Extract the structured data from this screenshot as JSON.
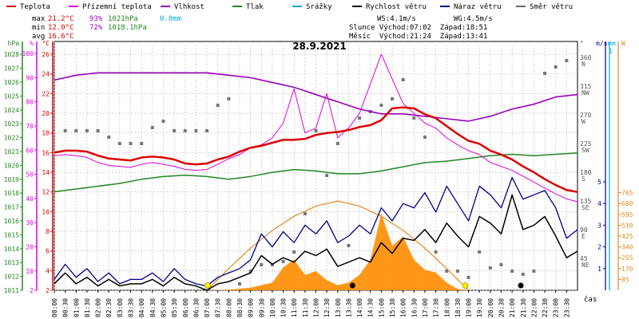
{
  "chart_data": {
    "type": "line",
    "title": "28.9.2021",
    "legend": [
      {
        "label": "Teplota",
        "color": "#dd0000"
      },
      {
        "label": "Přízemní teplota",
        "color": "#dd00dd"
      },
      {
        "label": "Vlhkost",
        "color": "#9900bb"
      },
      {
        "label": "Tlak",
        "color": "#228822"
      },
      {
        "label": "Srážky",
        "color": "#00aacc"
      },
      {
        "label": "Rychlost větru",
        "color": "#000000"
      },
      {
        "label": "Náraz větru",
        "color": "#000088"
      },
      {
        "label": "Směr větru",
        "color": "#666666"
      }
    ],
    "stats": {
      "max": {
        "label": "max",
        "temp": "21.2°C",
        "hum": "93%",
        "press": "1021hPa",
        "rain": "0.0mm"
      },
      "min": {
        "label": "min",
        "temp": "12.0°C",
        "hum": "72%",
        "press": "1018.1hPa"
      },
      "avg": {
        "label": "avg",
        "temp": "16.6°C"
      },
      "ws": "WS:4.1m/s",
      "wg": "WG:4.5m/s",
      "sun": "Slunce Východ:07:02  Západ:18:51",
      "moon": "Měsíc  Východ:21:24  Západ:13:41"
    },
    "axes": {
      "hpa": {
        "unit": "hPa",
        "ticks": [
          1011,
          1012,
          1013,
          1014,
          1015,
          1016,
          1017,
          1018,
          1019,
          1020,
          1021,
          1022,
          1023,
          1024,
          1025,
          1026,
          1027,
          1028
        ]
      },
      "pct": {
        "unit": "%",
        "ticks": [
          2,
          10,
          20,
          30,
          40,
          50,
          60,
          70,
          80,
          90,
          100
        ]
      },
      "temp": {
        "unit": "°C",
        "ticks": [
          2,
          4,
          6,
          8,
          10,
          12,
          14,
          16,
          18,
          20,
          22,
          24,
          26
        ]
      },
      "dir": {
        "unit": "°",
        "ticks": [
          {
            "v": "360",
            "d": "N"
          },
          {
            "v": "315",
            "d": "NW"
          },
          {
            "v": "270",
            "d": "W"
          },
          {
            "v": "225",
            "d": "SW"
          },
          {
            "v": "180",
            "d": "S"
          },
          {
            "v": "135",
            "d": "SE"
          },
          {
            "v": "90",
            "d": "E"
          },
          {
            "v": "45",
            "d": "NE"
          },
          {
            "v": "",
            "d": ""
          }
        ]
      },
      "wind": {
        "unit": "m/s",
        "ticks": [
          1,
          2,
          3,
          4,
          5
        ]
      },
      "rain": {
        "unit": "mm",
        "ticks": [
          "1"
        ]
      },
      "solar": {
        "unit": "W",
        "ticks": [
          85,
          170,
          255,
          340,
          425,
          510,
          595,
          680,
          765
        ]
      },
      "xlabel": "čas",
      "xticks": [
        "00:00",
        "00:30",
        "01:00",
        "01:30",
        "02:00",
        "02:30",
        "03:00",
        "03:30",
        "04:00",
        "04:30",
        "05:00",
        "05:30",
        "06:00",
        "06:30",
        "07:00",
        "07:30",
        "08:00",
        "08:30",
        "09:00",
        "09:30",
        "10:00",
        "10:30",
        "11:00",
        "11:30",
        "12:00",
        "12:30",
        "13:00",
        "13:30",
        "14:00",
        "14:30",
        "15:00",
        "15:30",
        "16:00",
        "16:30",
        "17:00",
        "17:30",
        "18:00",
        "18:30",
        "19:00",
        "19:30",
        "20:00",
        "20:30",
        "21:00",
        "21:30",
        "22:00",
        "22:30",
        "23:00",
        "23:30"
      ]
    },
    "temperature": {
      "x": [
        0,
        0.5,
        1,
        1.5,
        2,
        2.5,
        3,
        3.5,
        4,
        4.5,
        5,
        5.5,
        6,
        6.5,
        7,
        7.5,
        8,
        8.5,
        9,
        9.5,
        10,
        10.5,
        11,
        11.5,
        12,
        12.5,
        13,
        13.5,
        14,
        14.5,
        15,
        15.5,
        16,
        16.5,
        17,
        17.5,
        18,
        18.5,
        19,
        19.5,
        20,
        20.5,
        21,
        21.5,
        22,
        22.5,
        23,
        23.5,
        24
      ],
      "y": [
        16.0,
        16.2,
        16.2,
        16.1,
        15.7,
        15.4,
        15.3,
        15.2,
        15.5,
        15.6,
        15.5,
        15.3,
        14.9,
        14.8,
        14.9,
        15.3,
        15.6,
        16.1,
        16.5,
        16.7,
        17.0,
        17.3,
        17.3,
        17.4,
        17.8,
        18.0,
        18.1,
        18.3,
        18.6,
        18.8,
        19.3,
        20.5,
        20.6,
        20.5,
        19.9,
        19.5,
        18.7,
        17.9,
        17.2,
        16.9,
        16.2,
        15.8,
        15.3,
        14.6,
        14.0,
        13.3,
        12.7,
        12.2,
        12.0
      ]
    },
    "ground_temp": {
      "x": [
        0,
        0.5,
        1,
        1.5,
        2,
        2.5,
        3,
        3.5,
        4,
        4.5,
        5,
        5.5,
        6,
        6.5,
        7,
        7.5,
        8,
        8.5,
        9,
        9.5,
        10,
        10.5,
        11,
        11.5,
        12,
        12.5,
        13,
        13.5,
        14,
        14.5,
        15,
        15.5,
        16,
        16.5,
        17,
        17.5,
        18,
        18.5,
        19,
        19.5,
        20,
        20.5,
        21,
        21.5,
        22,
        22.5,
        23,
        23.5,
        24
      ],
      "y": [
        15.7,
        15.8,
        15.7,
        15.5,
        15.0,
        14.7,
        14.6,
        14.5,
        14.8,
        15.0,
        14.8,
        14.6,
        14.3,
        14.2,
        14.3,
        14.8,
        15.4,
        15.8,
        16.5,
        16.8,
        17.5,
        19.0,
        22.5,
        18.0,
        18.5,
        22.0,
        17.5,
        18.5,
        20.0,
        23.0,
        26.0,
        23.5,
        21.0,
        20.0,
        19.0,
        18.5,
        17.5,
        16.8,
        16.2,
        15.8,
        15.0,
        14.6,
        14.2,
        13.6,
        13.0,
        12.4,
        11.8,
        11.3,
        11.0
      ]
    },
    "humidity": {
      "x": [
        0,
        1,
        2,
        3,
        4,
        5,
        6,
        7,
        8,
        9,
        10,
        11,
        12,
        13,
        14,
        15,
        16,
        17,
        18,
        19,
        20,
        21,
        22,
        23,
        24
      ],
      "y": [
        89,
        91,
        92,
        92,
        92,
        92,
        92,
        92,
        91,
        90,
        88,
        86,
        83,
        80,
        77,
        75,
        75,
        74,
        73,
        72,
        74,
        77,
        79,
        82,
        83
      ]
    },
    "pressure": {
      "x": [
        0,
        1,
        2,
        3,
        4,
        5,
        6,
        7,
        8,
        9,
        10,
        11,
        12,
        13,
        14,
        15,
        16,
        17,
        18,
        19,
        20,
        21,
        22,
        23,
        24
      ],
      "y": [
        1018.1,
        1018.3,
        1018.5,
        1018.7,
        1019.0,
        1019.2,
        1019.3,
        1019.2,
        1019.0,
        1019.2,
        1019.5,
        1019.7,
        1019.6,
        1019.4,
        1019.4,
        1019.6,
        1019.9,
        1020.2,
        1020.3,
        1020.5,
        1020.7,
        1020.8,
        1020.7,
        1020.8,
        1020.9
      ]
    },
    "wind_speed": {
      "x": [
        0,
        0.5,
        1,
        1.5,
        2,
        2.5,
        3,
        3.5,
        4,
        4.5,
        5,
        5.5,
        6,
        6.5,
        7,
        7.5,
        8,
        8.5,
        9,
        9.5,
        10,
        10.5,
        11,
        11.5,
        12,
        12.5,
        13,
        13.5,
        14,
        14.5,
        15,
        15.5,
        16,
        16.5,
        17,
        17.5,
        18,
        18.5,
        19,
        19.5,
        20,
        20.5,
        21,
        21.5,
        22,
        22.5,
        23,
        23.5,
        24
      ],
      "y": [
        0.3,
        0.8,
        0.3,
        0.6,
        0.2,
        0.5,
        0.2,
        0.3,
        0.3,
        0.5,
        0.2,
        0.6,
        0.3,
        0.2,
        0.0,
        0.3,
        0.4,
        0.6,
        0.8,
        1.6,
        1.2,
        1.5,
        1.3,
        1.8,
        1.6,
        1.9,
        1.1,
        1.3,
        1.5,
        1.3,
        2.2,
        1.7,
        2.4,
        2.3,
        2.8,
        2.2,
        3.1,
        2.5,
        2.0,
        3.4,
        3.1,
        2.6,
        4.4,
        2.8,
        3.0,
        3.4,
        2.5,
        1.5,
        1.8
      ]
    },
    "wind_gust": {
      "x": [
        0,
        0.5,
        1,
        1.5,
        2,
        2.5,
        3,
        3.5,
        4,
        4.5,
        5,
        5.5,
        6,
        6.5,
        7,
        7.5,
        8,
        8.5,
        9,
        9.5,
        10,
        10.5,
        11,
        11.5,
        12,
        12.5,
        13,
        13.5,
        14,
        14.5,
        15,
        15.5,
        16,
        16.5,
        17,
        17.5,
        18,
        18.5,
        19,
        19.5,
        20,
        20.5,
        21,
        21.5,
        22,
        22.5,
        23,
        23.5,
        24
      ],
      "y": [
        0.5,
        1.2,
        0.6,
        1.0,
        0.4,
        0.8,
        0.3,
        0.5,
        0.5,
        0.8,
        0.4,
        1.0,
        0.5,
        0.3,
        0.2,
        0.6,
        0.8,
        1.0,
        1.4,
        2.6,
        2.0,
        2.7,
        2.2,
        3.0,
        2.6,
        3.2,
        2.2,
        2.5,
        3.0,
        2.6,
        3.8,
        3.2,
        4.0,
        3.8,
        4.5,
        3.6,
        4.8,
        4.0,
        3.2,
        4.8,
        4.4,
        3.8,
        5.2,
        4.2,
        4.4,
        4.6,
        3.8,
        2.4,
        2.8
      ]
    },
    "wind_dir": {
      "x": [
        0.5,
        1,
        1.5,
        2,
        2.5,
        3,
        3.5,
        4,
        4.5,
        5,
        5.5,
        6,
        6.5,
        7,
        7.5,
        8,
        8.5,
        9,
        9.5,
        10,
        10.5,
        11,
        11.5,
        12,
        12.5,
        13,
        13.5,
        14,
        14.5,
        15,
        15.5,
        16,
        16.5,
        17,
        17.5,
        18,
        18.5,
        19,
        19.5,
        20,
        20.5,
        21,
        21.5,
        22,
        22.5,
        23,
        23.5
      ],
      "y": [
        250,
        250,
        250,
        250,
        240,
        230,
        230,
        230,
        255,
        265,
        250,
        250,
        250,
        250,
        290,
        300,
        10,
        30,
        40,
        40,
        45,
        60,
        120,
        250,
        180,
        230,
        70,
        270,
        280,
        290,
        300,
        330,
        270,
        240,
        60,
        30,
        30,
        20,
        60,
        35,
        40,
        30,
        25,
        30,
        340,
        350,
        360
      ]
    },
    "solar_w": {
      "x": [
        7,
        8,
        9,
        9.5,
        10,
        10.5,
        11,
        11.5,
        12,
        12.5,
        13,
        13.5,
        14,
        14.5,
        15,
        15.5,
        16,
        16.5,
        17,
        17.5,
        18,
        18.5,
        19
      ],
      "y": [
        0,
        5,
        20,
        40,
        60,
        180,
        240,
        120,
        150,
        80,
        40,
        60,
        120,
        240,
        600,
        350,
        420,
        240,
        160,
        140,
        60,
        10,
        0
      ]
    },
    "solar_theory_w": {
      "x": [
        7,
        8,
        9,
        10,
        11,
        12,
        13,
        14,
        15,
        16,
        17,
        18,
        19
      ],
      "y": [
        0,
        170,
        330,
        470,
        580,
        660,
        700,
        660,
        580,
        470,
        330,
        170,
        0
      ]
    },
    "rain": {
      "total": "0.0mm"
    }
  }
}
